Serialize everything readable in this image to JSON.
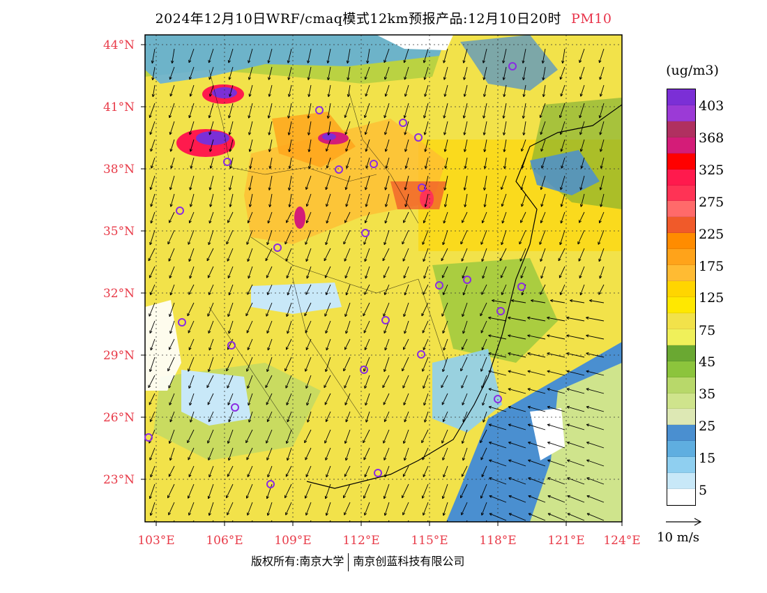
{
  "header": {
    "title": "2024年12月10日WRF/cmaq模式12km预报产品:12月10日20时",
    "pollutant": "PM10"
  },
  "map": {
    "lat_labels": [
      "44°N",
      "41°N",
      "38°N",
      "35°N",
      "32°N",
      "29°N",
      "26°N",
      "23°N"
    ],
    "lon_labels": [
      "103°E",
      "106°E",
      "109°E",
      "112°E",
      "115°E",
      "118°E",
      "121°E",
      "124°E"
    ],
    "colors": {
      "axis_label": "#e83a48",
      "station_marker": "#8a2be2"
    }
  },
  "legend": {
    "unit": "(ug/m3)",
    "tick_labels": [
      "403",
      "368",
      "325",
      "275",
      "225",
      "175",
      "125",
      "75",
      "45",
      "35",
      "25",
      "15",
      "5"
    ],
    "colors": [
      "#7b2fd6",
      "#9b3ad6",
      "#b03060",
      "#d41c78",
      "#ff0000",
      "#ff1a4d",
      "#ff3355",
      "#ff6a6a",
      "#f05a2a",
      "#ff8c00",
      "#ffa31a",
      "#ffbb33",
      "#ffd500",
      "#ffe800",
      "#f2e24a",
      "#f0f05a",
      "#6aa832",
      "#8cc43c",
      "#b8d86a",
      "#cfe48c",
      "#dde8b4",
      "#4a8fd0",
      "#5faee0",
      "#8fcff0",
      "#c8e8f8",
      "#ffffff"
    ],
    "wind_label": "10 m/s"
  },
  "footer": {
    "copyright_left": "版权所有:南京大学",
    "copyright_right": "南京创蓝科技有限公司"
  }
}
